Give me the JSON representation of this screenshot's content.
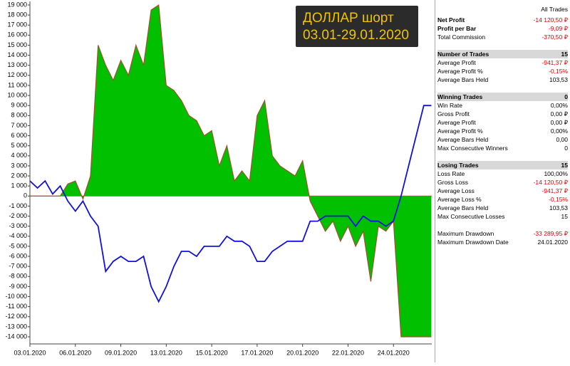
{
  "chart_data": {
    "type": "area",
    "categories": [
      "03.01.2020",
      null,
      null,
      null,
      null,
      null,
      "06.01.2020",
      null,
      null,
      null,
      null,
      null,
      "09.01.2020",
      null,
      null,
      null,
      null,
      null,
      "13.01.2020",
      null,
      null,
      null,
      null,
      null,
      "15.01.2020",
      null,
      null,
      null,
      null,
      null,
      "17.01.2020",
      null,
      null,
      null,
      null,
      null,
      "20.01.2020",
      null,
      null,
      null,
      null,
      null,
      "22.01.2020",
      null,
      null,
      null,
      null,
      null,
      "24.01.2020",
      null,
      null,
      null,
      null,
      null
    ],
    "series": [
      {
        "color": "#00c000",
        "line_color": "#a0522d",
        "values": [
          0,
          0,
          0,
          0,
          0,
          1200,
          1500,
          -300,
          2000,
          15000,
          13000,
          11500,
          13500,
          12000,
          15000,
          13000,
          18500,
          19000,
          11000,
          10500,
          9500,
          8000,
          7500,
          6000,
          6500,
          3000,
          5000,
          1500,
          2500,
          1500,
          8000,
          9500,
          4000,
          3000,
          2500,
          2000,
          3500,
          -500,
          -2000,
          -3500,
          -2500,
          -4500,
          -3000,
          -5000,
          -3500,
          -8500,
          -3000,
          -3500,
          -2500,
          -14000,
          -14000,
          -14000,
          -14000,
          -14000
        ]
      },
      {
        "color": "#1010e0",
        "values": [
          1500,
          800,
          1500,
          200,
          1000,
          -500,
          -1500,
          -500,
          -2000,
          -3000,
          -7500,
          -6500,
          -6000,
          -6500,
          -6500,
          -6000,
          -9000,
          -10500,
          -9000,
          -7000,
          -5500,
          -5500,
          -6000,
          -5000,
          -5000,
          -5000,
          -4000,
          -4500,
          -4500,
          -5000,
          -6500,
          -6500,
          -5500,
          -5000,
          -4500,
          -4500,
          -4500,
          -2500,
          -2500,
          -2000,
          -2000,
          -2000,
          -2000,
          -3000,
          -2000,
          -2500,
          -2500,
          -3000,
          -2500,
          0,
          3000,
          6000,
          9000,
          9000
        ]
      }
    ],
    "ylim": [
      -14000,
      19000
    ],
    "yticks": [
      {
        "value": 19000,
        "label": "19 000"
      },
      {
        "value": 18000,
        "label": "18 000"
      },
      {
        "value": 17000,
        "label": "17 000"
      },
      {
        "value": 16000,
        "label": "16 000"
      },
      {
        "value": 15000,
        "label": "15 000"
      },
      {
        "value": 14000,
        "label": "14 000"
      },
      {
        "value": 13000,
        "label": "13 000"
      },
      {
        "value": 12000,
        "label": "12 000"
      },
      {
        "value": 11000,
        "label": "11 000"
      },
      {
        "value": 10000,
        "label": "10 000"
      },
      {
        "value": 9000,
        "label": "9 000"
      },
      {
        "value": 8000,
        "label": "8 000"
      },
      {
        "value": 7000,
        "label": "7 000"
      },
      {
        "value": 6000,
        "label": "6 000"
      },
      {
        "value": 5000,
        "label": "5 000"
      },
      {
        "value": 4000,
        "label": "4 000"
      },
      {
        "value": 3000,
        "label": "3 000"
      },
      {
        "value": 2000,
        "label": "2 000"
      },
      {
        "value": 1000,
        "label": "1 000"
      },
      0,
      {
        "value": -1000,
        "label": "-1 000"
      },
      {
        "value": -2000,
        "label": "-2 000"
      },
      {
        "value": -3000,
        "label": "-3 000"
      },
      {
        "value": -4000,
        "label": "-4 000"
      },
      {
        "value": -5000,
        "label": "-5 000"
      },
      {
        "value": -6000,
        "label": "-6 000"
      },
      {
        "value": -7000,
        "label": "-7 000"
      },
      {
        "value": -8000,
        "label": "-8 000"
      },
      {
        "value": -9000,
        "label": "-9 000"
      },
      {
        "value": -10000,
        "label": "-10 000"
      },
      {
        "value": -11000,
        "label": "-11 000"
      },
      {
        "value": -12000,
        "label": "-12 000"
      },
      {
        "value": -13000,
        "label": "-13 000"
      },
      {
        "value": -14000,
        "label": "-14 000"
      }
    ],
    "annotation": [
      "ДОЛЛАР шорт",
      "03.01-29.01.2020"
    ]
  },
  "table": {
    "header": "All Trades",
    "sections": [
      [
        [
          "Net Profit",
          "-14 120,50 ₽"
        ],
        [
          "Profit per Bar",
          "-9,09 ₽"
        ],
        [
          "Total Commission",
          "-370,50 ₽"
        ]
      ],
      [
        [
          "Number of Trades",
          "15"
        ],
        [
          "Average Profit",
          "-941,37 ₽"
        ],
        [
          "Average Profit %",
          "-0,15%"
        ],
        [
          "Average Bars Held",
          "103,53"
        ]
      ],
      [
        [
          "Winning Trades",
          "0"
        ],
        [
          "Win Rate",
          "0,00%"
        ],
        [
          "Gross Profit",
          "0,00 ₽"
        ],
        [
          "Average Profit",
          "0,00 ₽"
        ],
        [
          "Average Profit %",
          "0,00%"
        ],
        [
          "Average Bars Held",
          "0,00"
        ],
        [
          "Max Consecutive Winners",
          "0"
        ]
      ],
      [
        [
          "Losing Trades",
          "15"
        ],
        [
          "Loss Rate",
          "100,00%"
        ],
        [
          "Gross Loss",
          "-14 120,50 ₽"
        ],
        [
          "Average Loss",
          "-941,37 ₽"
        ],
        [
          "Average Loss %",
          "-0,15%"
        ],
        [
          "Average Bars Held",
          "103,53"
        ],
        [
          "Max Consecutive Losses",
          "15"
        ]
      ],
      [
        [
          "Maximum Drawdown",
          "-33 289,95 ₽"
        ],
        [
          "Maximum Drawdown Date",
          "24.01.2020"
        ]
      ]
    ]
  }
}
